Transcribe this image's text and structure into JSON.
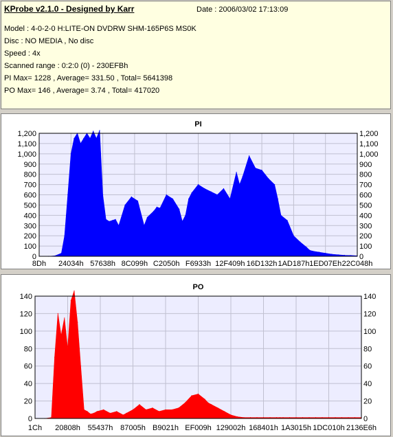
{
  "info": {
    "title": "KProbe v2.1.0 - Designed by Karr",
    "date": "Date : 2006/03/02 17:13:09",
    "lines": [
      "Model : 4-0-2-0 H:LITE-ON DVDRW SHM-165P6S MS0K",
      "Disc : NO MEDIA , No disc",
      "Speed : 4x",
      "Scanned range : 0:2:0 (0) - 230EFBh",
      "PI Max= 1228 , Average= 331.50 , Total= 5641398",
      "PO Max= 146 , Average= 3.74 , Total= 417020"
    ]
  },
  "chart_data": [
    {
      "type": "area",
      "title": "PI",
      "color": "#0000ff",
      "ylim": [
        0,
        1200
      ],
      "yticks": [
        0,
        100,
        200,
        300,
        400,
        500,
        600,
        700,
        800,
        900,
        1000,
        1100,
        1200
      ],
      "ytick_labels": [
        "0",
        "100",
        "200",
        "300",
        "400",
        "500",
        "600",
        "700",
        "800",
        "900",
        "1,000",
        "1,100",
        "1,200"
      ],
      "xtick_labels": [
        "8Dh",
        "24034h",
        "57638h",
        "8C099h",
        "C2050h",
        "F6933h",
        "12F409h",
        "16D132h",
        "1AD187h",
        "1ED07Eh",
        "22C048h"
      ],
      "x": [
        0,
        3,
        5,
        7,
        8,
        9,
        10,
        11,
        12,
        13,
        14,
        15,
        16,
        17,
        18,
        19,
        20,
        21,
        22,
        23,
        24,
        25,
        27,
        29,
        31,
        33,
        34,
        36,
        37,
        38,
        40,
        42,
        44,
        45,
        46,
        47,
        48,
        50,
        52,
        54,
        56,
        58,
        60,
        62,
        63,
        64,
        66,
        68,
        70,
        72,
        74,
        75,
        76,
        78,
        80,
        82,
        84,
        85,
        86,
        88,
        90,
        92,
        94,
        96,
        98,
        100
      ],
      "values": [
        0,
        0,
        5,
        30,
        200,
        600,
        1000,
        1150,
        1200,
        1100,
        1150,
        1200,
        1150,
        1220,
        1150,
        1228,
        600,
        360,
        340,
        350,
        360,
        300,
        500,
        580,
        540,
        300,
        380,
        440,
        480,
        470,
        600,
        560,
        460,
        340,
        400,
        560,
        620,
        700,
        660,
        630,
        600,
        660,
        560,
        820,
        700,
        780,
        980,
        860,
        840,
        760,
        700,
        560,
        400,
        350,
        200,
        140,
        90,
        60,
        50,
        40,
        30,
        20,
        15,
        10,
        8,
        5
      ]
    },
    {
      "type": "area",
      "title": "PO",
      "color": "#ff0000",
      "ylim": [
        0,
        140
      ],
      "yticks": [
        0,
        20,
        40,
        60,
        80,
        100,
        120,
        140
      ],
      "ytick_labels": [
        "0",
        "20",
        "40",
        "60",
        "80",
        "100",
        "120",
        "140"
      ],
      "xtick_labels": [
        "1Ch",
        "20808h",
        "55437h",
        "87005h",
        "B9021h",
        "EF009h",
        "129002h",
        "168401h",
        "1A3015h",
        "1DC010h",
        "2136E6h"
      ],
      "x": [
        0,
        3,
        5,
        6,
        7,
        8,
        9,
        10,
        11,
        12,
        13,
        14,
        15,
        16,
        17,
        18,
        19,
        21,
        23,
        25,
        27,
        28,
        30,
        32,
        34,
        36,
        38,
        40,
        42,
        44,
        46,
        48,
        50,
        52,
        53,
        54,
        56,
        58,
        60,
        62,
        64,
        66,
        68,
        70,
        72,
        74,
        75,
        76,
        78,
        80,
        82,
        84,
        86,
        88,
        90,
        92,
        94,
        96,
        98,
        100
      ],
      "values": [
        0,
        0,
        1,
        70,
        120,
        95,
        115,
        80,
        135,
        146,
        110,
        60,
        10,
        8,
        5,
        6,
        8,
        10,
        6,
        8,
        4,
        6,
        10,
        16,
        10,
        12,
        8,
        10,
        10,
        12,
        18,
        26,
        28,
        22,
        18,
        16,
        12,
        8,
        4,
        2,
        1,
        1,
        1,
        1,
        1,
        1,
        1,
        1,
        1,
        1,
        1,
        1,
        1,
        1,
        1,
        1,
        1,
        1,
        1,
        1
      ]
    }
  ]
}
